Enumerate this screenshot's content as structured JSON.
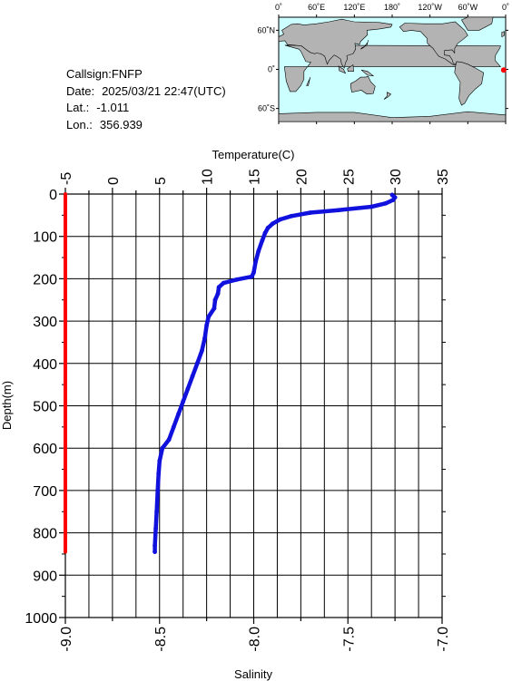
{
  "info": {
    "callsign": "Callsign:FNFP",
    "date_label": "Date:",
    "date_value": "2025/03/21 22:47(UTC)",
    "lat_label": "Lat.:",
    "lat_value": "-1.011",
    "lon_label": "Lon.:",
    "lon_value": "356.939"
  },
  "map": {
    "lon_ticks": [
      "0˚",
      "60˚E",
      "120˚E",
      "180˚",
      "120˚W",
      "60˚W",
      "0˚"
    ],
    "lat_ticks": [
      "60˚N",
      "0˚",
      "60˚S"
    ],
    "ocean_color": "#ccffff",
    "land_color": "#b3b3b3",
    "marker_color": "#ff0000",
    "marker_lon": 356.939,
    "marker_lat": -1.011
  },
  "chart_data": {
    "type": "line",
    "ylabel": "Depth(m)",
    "ylim": [
      1000,
      0
    ],
    "yticks": [
      "0",
      "100",
      "200",
      "300",
      "400",
      "500",
      "600",
      "700",
      "800",
      "900",
      "1000"
    ],
    "top_axis": {
      "label": "Temperature(C)",
      "range": [
        -5,
        35
      ],
      "ticks": [
        "-5",
        "0",
        "5",
        "10",
        "15",
        "20",
        "25",
        "30",
        "35"
      ]
    },
    "bottom_axis": {
      "label": "Salinity",
      "range": [
        -9.0,
        -7.0
      ],
      "ticks": [
        "-9.0",
        "-8.5",
        "-8.0",
        "-7.5",
        "-7.0"
      ]
    },
    "grid": true,
    "series": [
      {
        "axis": "top",
        "color": "#1111dd",
        "points": [
          [
            29.7,
            2
          ],
          [
            30.0,
            8
          ],
          [
            29.8,
            14
          ],
          [
            29.0,
            22
          ],
          [
            27.5,
            30
          ],
          [
            24.0,
            38
          ],
          [
            21.0,
            44
          ],
          [
            19.0,
            52
          ],
          [
            17.8,
            60
          ],
          [
            17.0,
            70
          ],
          [
            16.5,
            80
          ],
          [
            16.2,
            92
          ],
          [
            15.9,
            110
          ],
          [
            15.5,
            135
          ],
          [
            15.2,
            160
          ],
          [
            15.0,
            185
          ],
          [
            14.8,
            195
          ],
          [
            13.2,
            202
          ],
          [
            11.8,
            210
          ],
          [
            11.3,
            220
          ],
          [
            11.2,
            235
          ],
          [
            10.9,
            250
          ],
          [
            10.8,
            270
          ],
          [
            10.2,
            290
          ],
          [
            10.0,
            310
          ],
          [
            9.8,
            340
          ],
          [
            9.5,
            370
          ],
          [
            9.0,
            400
          ],
          [
            8.5,
            430
          ],
          [
            8.0,
            460
          ],
          [
            7.5,
            490
          ],
          [
            7.0,
            520
          ],
          [
            6.5,
            550
          ],
          [
            6.0,
            580
          ],
          [
            5.3,
            600
          ],
          [
            5.0,
            630
          ],
          [
            4.9,
            660
          ],
          [
            4.8,
            700
          ],
          [
            4.7,
            750
          ],
          [
            4.6,
            790
          ],
          [
            4.5,
            830
          ],
          [
            4.5,
            845
          ]
        ]
      },
      {
        "axis": "bottom",
        "color": "#ff0000",
        "points": [
          [
            -9.0,
            0
          ],
          [
            -9.0,
            845
          ]
        ]
      }
    ]
  }
}
